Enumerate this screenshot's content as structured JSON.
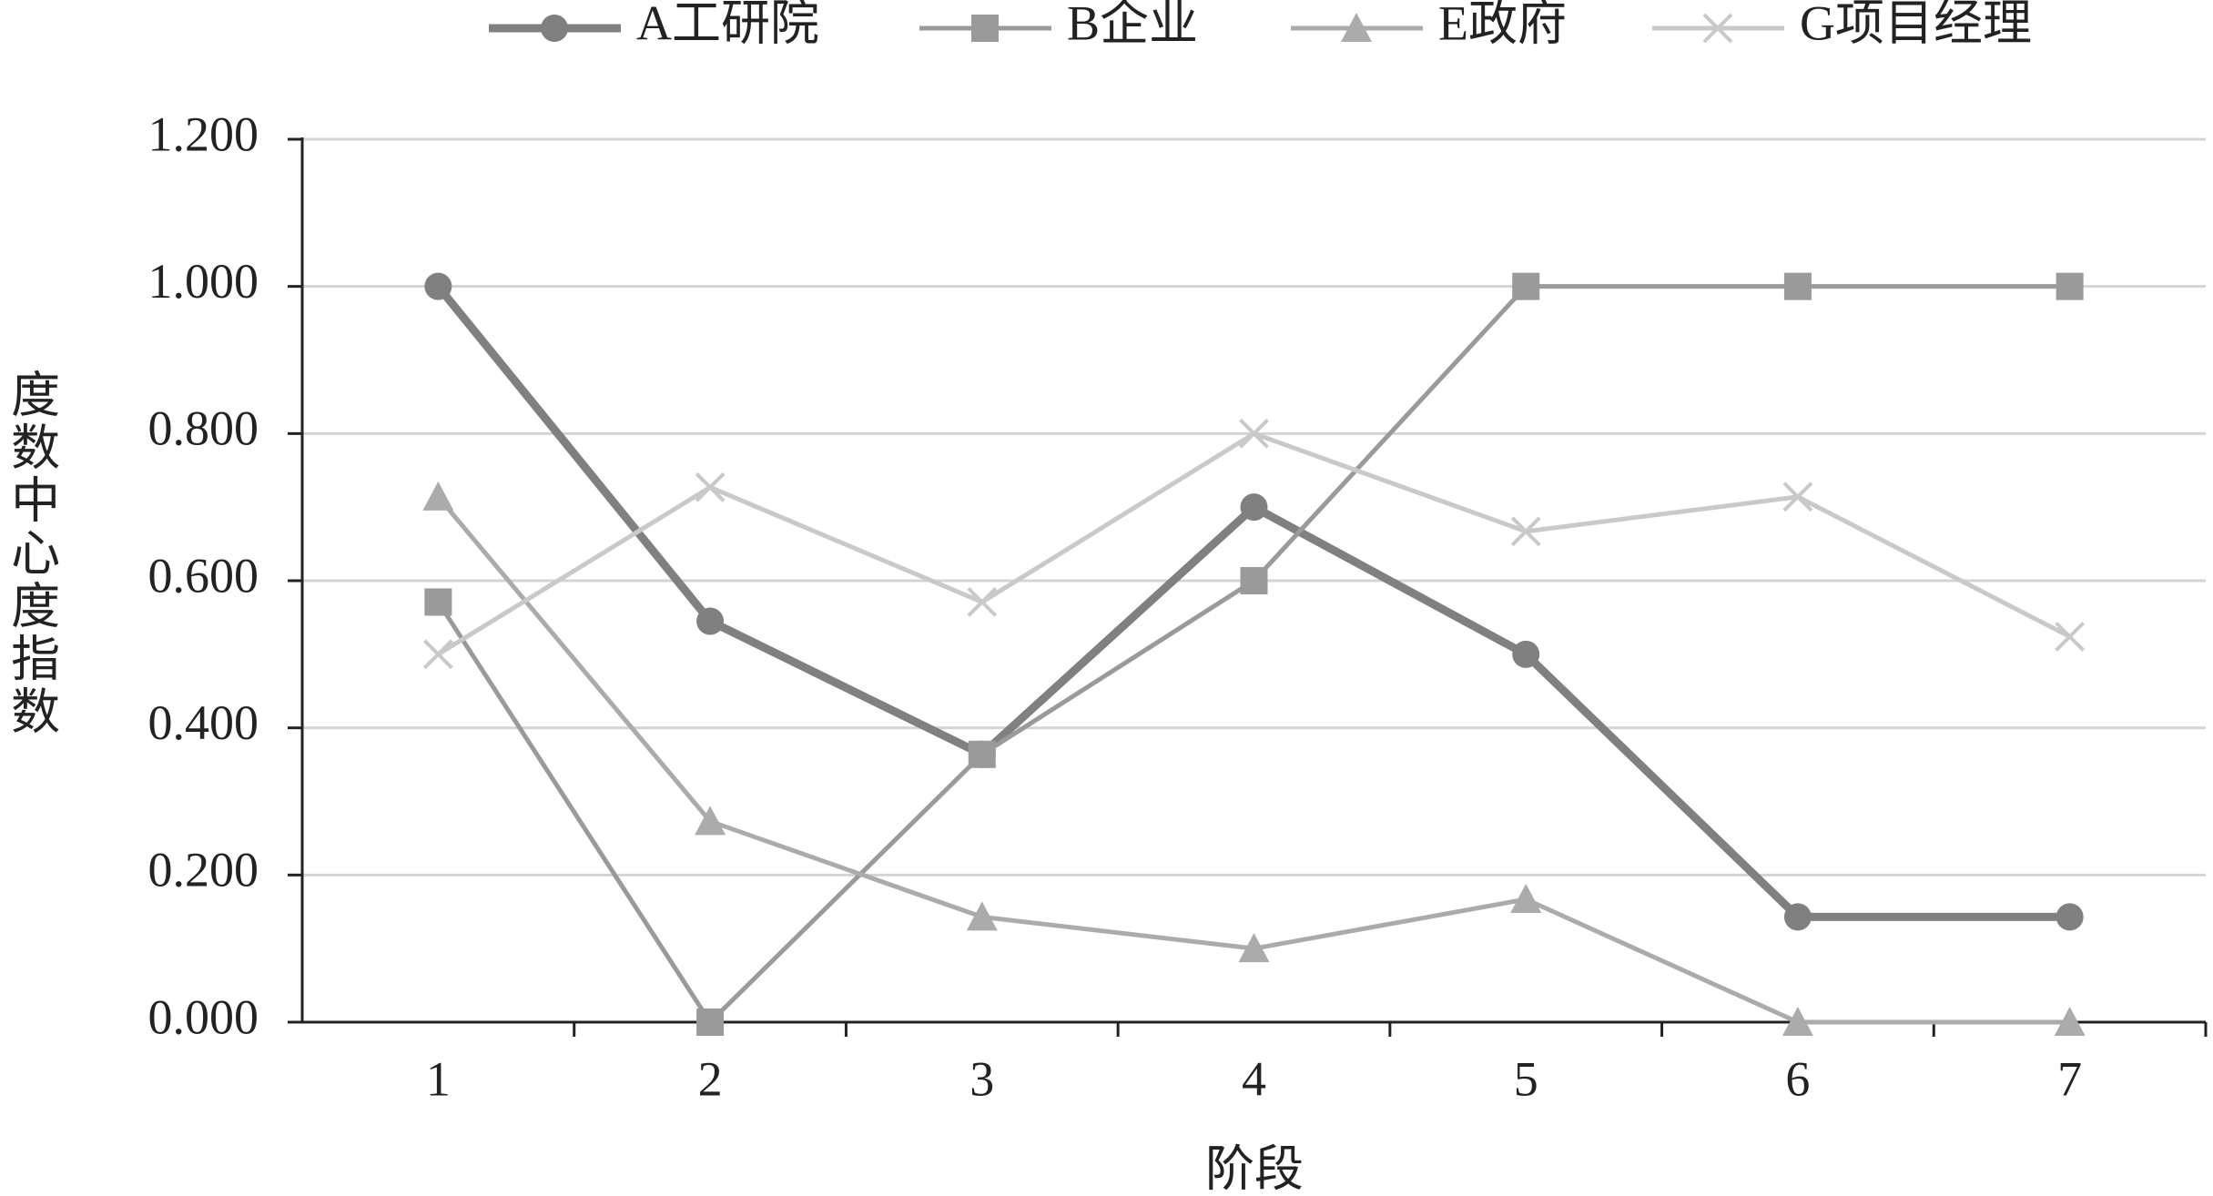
{
  "chart_data": {
    "type": "line",
    "y_axis_label": "度数中心度指数",
    "x_axis_label": "阶段",
    "categories": [
      "1",
      "2",
      "3",
      "4",
      "5",
      "6",
      "7"
    ],
    "ylim": [
      0,
      1.2
    ],
    "yticks": [
      {
        "value": 0,
        "label": "0.000"
      },
      {
        "value": 0.2,
        "label": "0.200"
      },
      {
        "value": 0.4,
        "label": "0.400"
      },
      {
        "value": 0.6,
        "label": "0.600"
      },
      {
        "value": 0.8,
        "label": "0.800"
      },
      {
        "value": 1.0,
        "label": "1.000"
      },
      {
        "value": 1.2,
        "label": "1.200"
      }
    ],
    "grid": true,
    "legend": "top",
    "series": [
      {
        "name": "A工研院",
        "color": "#808080",
        "marker": "circle",
        "values": [
          1.0,
          0.545,
          0.364,
          0.7,
          0.5,
          0.143,
          0.143
        ]
      },
      {
        "name": "B企业",
        "color": "#9a9a9a",
        "marker": "square",
        "values": [
          0.571,
          0,
          0.364,
          0.6,
          1.0,
          1.0,
          1.0
        ]
      },
      {
        "name": "E政府",
        "color": "#ababab",
        "marker": "triangle",
        "values": [
          0.714,
          0.273,
          0.143,
          0.1,
          0.167,
          0,
          0
        ]
      },
      {
        "name": "G项目经理",
        "color": "#c9c9c9",
        "marker": "x",
        "values": [
          0.5,
          0.727,
          0.571,
          0.8,
          0.667,
          0.714,
          0.524
        ]
      }
    ]
  }
}
